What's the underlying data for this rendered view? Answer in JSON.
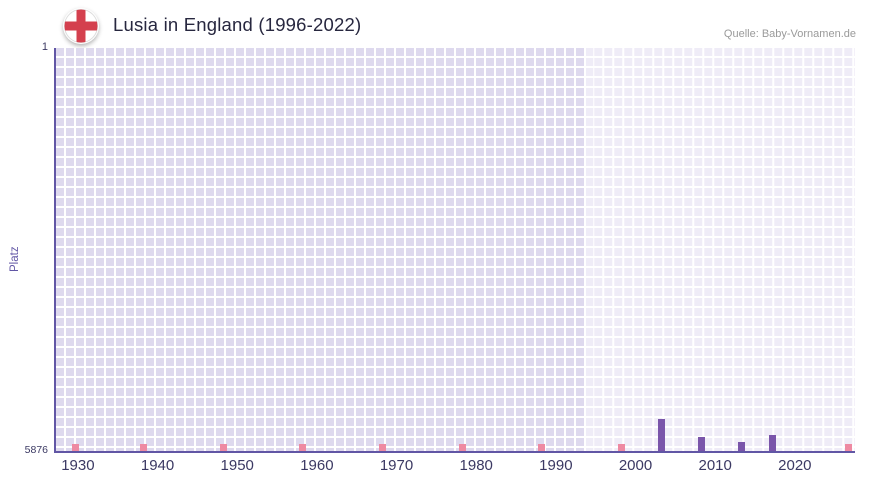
{
  "header": {
    "title": "Lusia in England (1996-2022)",
    "source": "Quelle: Baby-Vornamen.de"
  },
  "chart_data": {
    "type": "bar",
    "title": "Lusia in England (1996-2022)",
    "xlabel": "",
    "ylabel": "Platz",
    "y_axis": {
      "top_label": "1",
      "bottom_label": "5876",
      "min": 1,
      "max": 5876,
      "inverted": true
    },
    "x_axis": {
      "min": 1927,
      "max": 2027.3,
      "ticks": [
        1930,
        1940,
        1950,
        1960,
        1970,
        1980,
        1990,
        2000,
        2010,
        2020
      ]
    },
    "grid": true,
    "legend": "none",
    "regions": [
      {
        "name": "no-data-region",
        "from": 1927,
        "to": 1993.5,
        "color": "#ded9ee"
      },
      {
        "name": "data-period-region",
        "from": 1993.5,
        "to": 2027.3,
        "color": "#efecf7"
      }
    ],
    "bars": [
      {
        "year": 2003,
        "rank": 5410
      },
      {
        "year": 2008,
        "rank": 5670
      },
      {
        "year": 2013,
        "rank": 5745
      },
      {
        "year": 2017,
        "rank": 5645
      }
    ],
    "decade_marks": {
      "years": [
        1929.5,
        1938,
        1948,
        1958,
        1968,
        1978,
        1988,
        1998,
        2026.5
      ],
      "rank": 5775,
      "color": "#ee8aa2"
    },
    "colors": {
      "bar": "#7a55aa",
      "axis": "#6156a5",
      "tick_text": "#3b3963",
      "flag_red": "#d4404e"
    }
  }
}
